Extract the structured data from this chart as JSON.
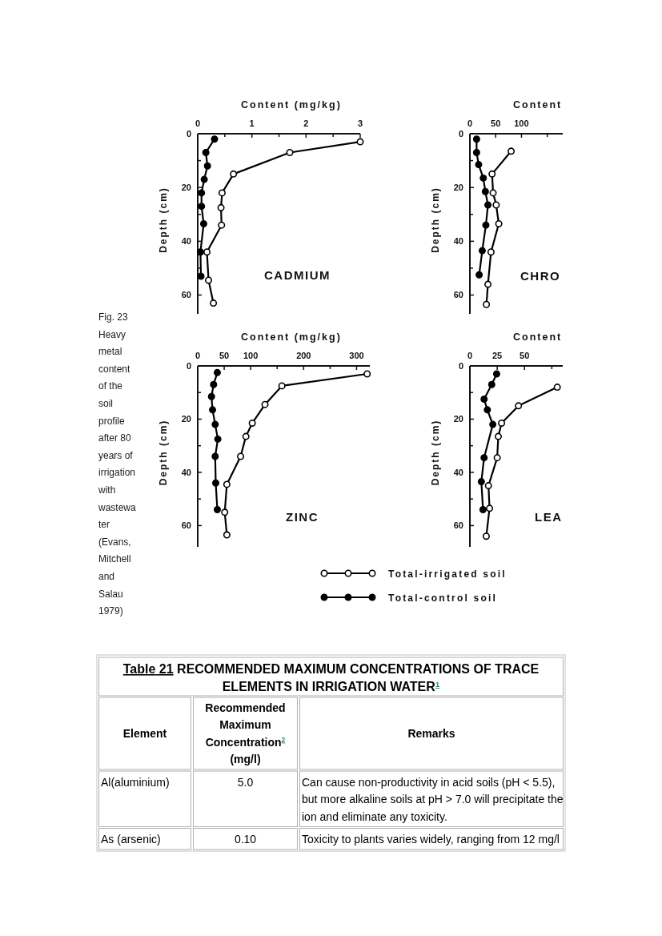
{
  "chart_data": [
    {
      "type": "line",
      "title": "CADMIUM",
      "xlabel": "Content (mg/kg)",
      "ylabel": "Depth (cm)",
      "annotations": [
        "Fig. 23 Heavy metal content of the soil profile after 80 years of irrigation with wastewater (Evans, Mitchell and Salau 1979)"
      ],
      "xlim": [
        0,
        3
      ],
      "xticks": [
        0,
        {
          "value": 0.5,
          "label": null
        },
        1,
        {
          "value": 1.5,
          "label": null
        },
        2,
        {
          "value": 2.5,
          "label": null
        },
        3
      ],
      "ylim": [
        67,
        0
      ],
      "yticks": [
        0,
        {
          "value": 10,
          "label": null
        },
        20,
        {
          "value": 30,
          "label": null
        },
        40,
        {
          "value": 50,
          "label": null
        },
        60
      ],
      "marker": "circle",
      "series": [
        {
          "color": "#000000",
          "x": [
            3.0,
            1.7,
            0.66,
            0.45,
            0.43,
            0.44,
            0.17,
            0.2,
            0.29
          ],
          "values": [
            3,
            7,
            15,
            22,
            27.5,
            34,
            44,
            54.5,
            63
          ]
        },
        {
          "color": "#000000",
          "x": [
            0.31,
            0.15,
            0.18,
            0.12,
            0.07,
            0.07,
            0.11,
            0.05,
            0.06
          ],
          "values": [
            2,
            7,
            12,
            17,
            22,
            27,
            33.5,
            44,
            53
          ]
        }
      ]
    },
    {
      "type": "line",
      "title": "CHRO",
      "xlabel": "Content",
      "ylabel": "Depth (cm)",
      "xlim": [
        0,
        180
      ],
      "xticks": [
        0,
        50,
        100,
        {
          "value": 150,
          "label": null
        }
      ],
      "ylim": [
        67,
        0
      ],
      "yticks": [
        0,
        {
          "value": 10,
          "label": null
        },
        20,
        {
          "value": 30,
          "label": null
        },
        40,
        {
          "value": 50,
          "label": null
        },
        60
      ],
      "marker": "circle",
      "series": [
        {
          "color": "#000000",
          "x": [
            80,
            43,
            45,
            51,
            56,
            41,
            35,
            32
          ],
          "values": [
            6.5,
            15,
            22,
            26.5,
            33.5,
            44,
            56,
            63.5
          ]
        },
        {
          "color": "#000000",
          "x": [
            13,
            13,
            17,
            26,
            30,
            35,
            31,
            24,
            18
          ],
          "values": [
            2,
            7,
            11.5,
            16.5,
            21.5,
            26.5,
            34,
            43.5,
            52.5
          ]
        }
      ]
    },
    {
      "type": "line",
      "title": "ZINC",
      "xlabel": "Content (mg/kg)",
      "ylabel": "Depth (cm)",
      "xlim": [
        0,
        325
      ],
      "xticks": [
        0,
        50,
        100,
        {
          "value": 150,
          "label": null
        },
        200,
        {
          "value": 250,
          "label": null
        },
        300
      ],
      "ylim": [
        68,
        0
      ],
      "yticks": [
        0,
        {
          "value": 10,
          "label": null
        },
        20,
        {
          "value": 30,
          "label": null
        },
        40,
        {
          "value": 50,
          "label": null
        },
        60
      ],
      "marker": "circle",
      "legend": "bottom right",
      "series": [
        {
          "name": "Total-irrigated soil",
          "color": "#000000",
          "x": [
            320,
            159,
            127,
            103,
            91,
            81,
            55,
            51,
            55
          ],
          "values": [
            3,
            7.5,
            14.5,
            21.5,
            26.5,
            34,
            44.5,
            55,
            63.5
          ]
        },
        {
          "name": "Total-control soil",
          "color": "#000000",
          "x": [
            37,
            30,
            26,
            28,
            33,
            38,
            33,
            34,
            37
          ],
          "values": [
            2.5,
            7,
            11.5,
            16.5,
            22,
            27.5,
            34,
            44,
            54
          ]
        }
      ]
    },
    {
      "type": "line",
      "title": "LEA",
      "xlabel": "Content",
      "ylabel": "Depth (cm)",
      "xlim": [
        0,
        85
      ],
      "xticks": [
        0,
        25,
        50,
        {
          "value": 75,
          "label": null
        }
      ],
      "ylim": [
        68,
        0
      ],
      "yticks": [
        0,
        {
          "value": 10,
          "label": null
        },
        20,
        {
          "value": 30,
          "label": null
        },
        40,
        {
          "value": 50,
          "label": null
        },
        60
      ],
      "marker": "circle",
      "series": [
        {
          "color": "#000000",
          "x": [
            80,
            44.5,
            29,
            26,
            25,
            17,
            18,
            15
          ],
          "values": [
            8,
            15,
            21.5,
            26.5,
            34.5,
            45,
            53.5,
            64
          ]
        },
        {
          "color": "#000000",
          "x": [
            24.5,
            20,
            13,
            16,
            21,
            13,
            10.5,
            12
          ],
          "values": [
            3,
            7,
            12.5,
            16.5,
            22,
            34.5,
            43.5,
            54
          ]
        }
      ]
    },
    {
      "type": "other",
      "title": "Table 21 RECOMMENDED MAXIMUM CONCENTRATIONS OF TRACE ELEMENTS IN IRRIGATION WATER$^{1}$",
      "categories": [
        "Element",
        "Recommended Maximum Concentration$^{2}$ (mg/l)",
        "Remarks"
      ],
      "cell_labels": [
        [
          "Al(aluminium)",
          "5.0",
          "Can cause non-productivity in acid soils (pH < 5.5), but more alkaline soils at pH > 7.0 will precipitate the ion and eliminate any toxicity."
        ],
        [
          "As (arsenic)",
          "0.10",
          "Toxicity to plants varies widely, ranging from 12 mg/l"
        ]
      ]
    }
  ]
}
